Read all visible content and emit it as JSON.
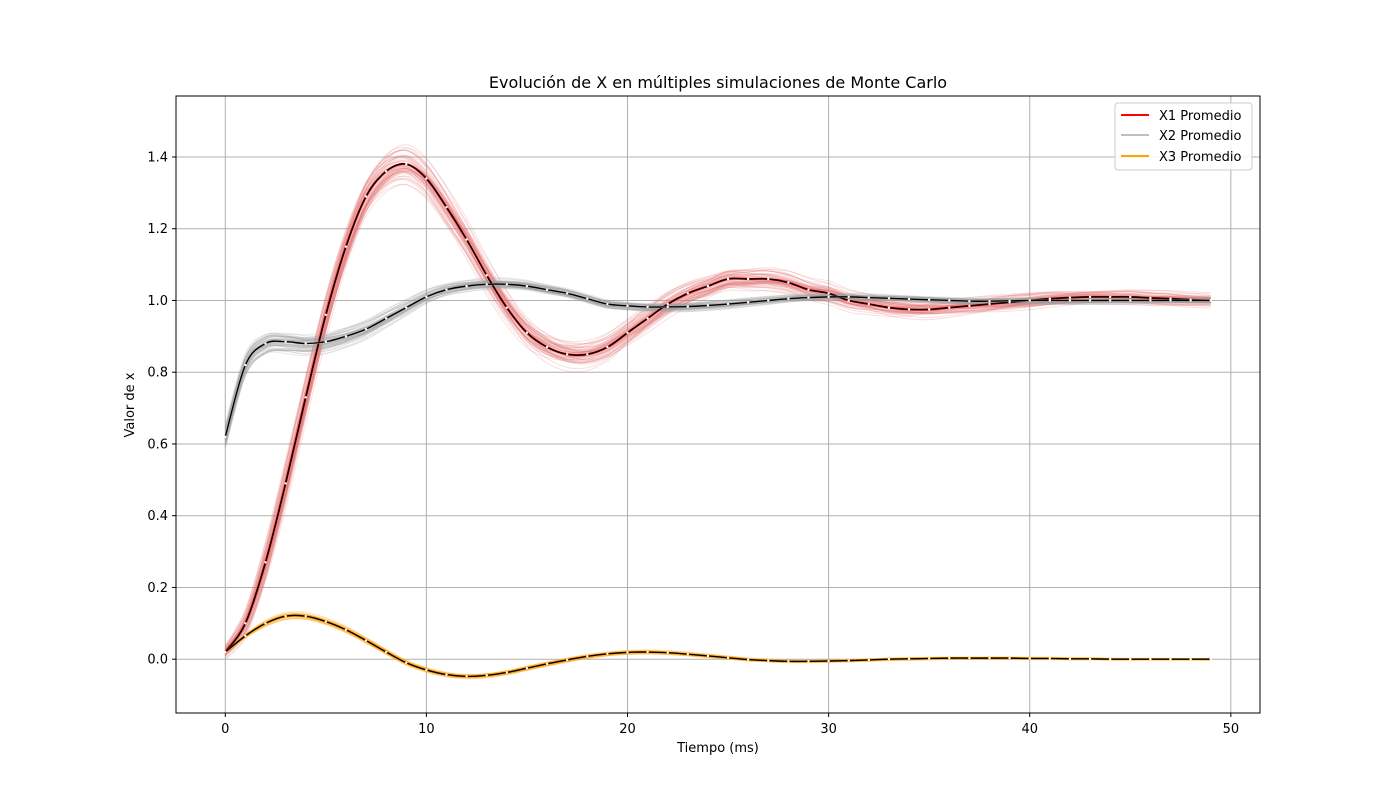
{
  "chart_data": {
    "type": "line",
    "title": "Evolución de X en múltiples simulaciones de Monte Carlo",
    "xlabel": "Tiempo (ms)",
    "ylabel": "Valor de x",
    "xlim": [
      -2.45,
      51.45
    ],
    "ylim": [
      -0.15,
      1.57
    ],
    "xticks": [
      0,
      10,
      20,
      30,
      40,
      50
    ],
    "yticks": [
      0.0,
      0.2,
      0.4,
      0.6,
      0.8,
      1.0,
      1.2,
      1.4
    ],
    "grid": true,
    "legend_position": "top-right",
    "x": [
      0,
      1,
      2,
      3,
      4,
      5,
      6,
      7,
      8,
      9,
      10,
      11,
      12,
      13,
      14,
      15,
      16,
      17,
      18,
      19,
      20,
      21,
      22,
      23,
      24,
      25,
      26,
      27,
      28,
      29,
      30,
      31,
      32,
      33,
      34,
      35,
      36,
      37,
      38,
      39,
      40,
      41,
      42,
      43,
      44,
      45,
      46,
      47,
      48,
      49
    ],
    "series": [
      {
        "name": "X1 Promedio",
        "color": "#ff0000",
        "band_color": "#e57373",
        "values": [
          0.02,
          0.1,
          0.27,
          0.49,
          0.73,
          0.96,
          1.15,
          1.29,
          1.36,
          1.38,
          1.34,
          1.26,
          1.17,
          1.07,
          0.98,
          0.91,
          0.87,
          0.85,
          0.85,
          0.87,
          0.91,
          0.95,
          0.99,
          1.02,
          1.04,
          1.06,
          1.06,
          1.06,
          1.05,
          1.03,
          1.02,
          1.0,
          0.99,
          0.98,
          0.975,
          0.975,
          0.98,
          0.985,
          0.99,
          0.995,
          1.0,
          1.005,
          1.008,
          1.01,
          1.01,
          1.01,
          1.007,
          1.005,
          1.002,
          1.0
        ]
      },
      {
        "name": "X2 Promedio",
        "color": "#c0c0c0",
        "band_color": "#9e9e9e",
        "values": [
          0.62,
          0.82,
          0.88,
          0.885,
          0.88,
          0.885,
          0.9,
          0.92,
          0.95,
          0.98,
          1.01,
          1.03,
          1.04,
          1.045,
          1.045,
          1.04,
          1.03,
          1.02,
          1.005,
          0.99,
          0.985,
          0.982,
          0.982,
          0.983,
          0.986,
          0.99,
          0.995,
          1.0,
          1.005,
          1.008,
          1.01,
          1.01,
          1.008,
          1.006,
          1.004,
          1.002,
          1.0,
          0.998,
          0.998,
          0.999,
          1.0,
          1.0,
          1.0,
          1.0,
          1.0,
          1.0,
          1.0,
          1.0,
          1.0,
          1.0
        ]
      },
      {
        "name": "X3 Promedio",
        "color": "#ffa500",
        "band_color": "#ffa726",
        "values": [
          0.02,
          0.065,
          0.1,
          0.12,
          0.12,
          0.105,
          0.082,
          0.052,
          0.02,
          -0.01,
          -0.03,
          -0.043,
          -0.048,
          -0.045,
          -0.037,
          -0.025,
          -0.013,
          -0.002,
          0.008,
          0.015,
          0.019,
          0.02,
          0.018,
          0.014,
          0.009,
          0.004,
          -0.001,
          -0.004,
          -0.006,
          -0.006,
          -0.005,
          -0.004,
          -0.002,
          0.0,
          0.001,
          0.002,
          0.003,
          0.003,
          0.003,
          0.003,
          0.002,
          0.002,
          0.001,
          0.001,
          0.0,
          0.0,
          0.0,
          0.0,
          0.0,
          0.0
        ]
      }
    ]
  }
}
